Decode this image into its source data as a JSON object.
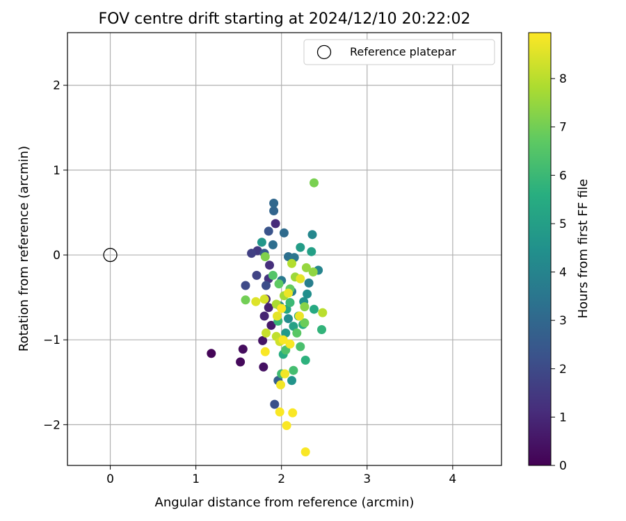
{
  "chart_data": {
    "type": "scatter",
    "title": "FOV centre drift starting at 2024/12/10 20:22:02",
    "xlabel": "Angular distance from reference (arcmin)",
    "ylabel": "Rotation from reference (arcmin)",
    "xlim": [
      -0.5,
      4.57
    ],
    "ylim": [
      -2.48,
      2.62
    ],
    "xticks": [
      0,
      1,
      2,
      3,
      4
    ],
    "xtick_labels": [
      "0",
      "1",
      "2",
      "3",
      "4"
    ],
    "yticks": [
      -2,
      -1,
      0,
      1,
      2
    ],
    "ytick_labels": [
      "−2",
      "−1",
      "0",
      "1",
      "2"
    ],
    "grid": true,
    "legend": {
      "placement": "top-right",
      "entries": [
        "Reference platepar"
      ]
    },
    "reference_point": {
      "name": "Reference platepar",
      "x": 0,
      "y": 0
    },
    "colorbar": {
      "label": "Hours from first FF file",
      "colormap": "viridis",
      "range": [
        0,
        8.95
      ],
      "ticks": [
        0,
        1,
        2,
        3,
        4,
        5,
        6,
        7,
        8
      ],
      "tick_labels": [
        "0",
        "1",
        "2",
        "3",
        "4",
        "5",
        "6",
        "7",
        "8"
      ]
    },
    "points": [
      {
        "x": 1.18,
        "y": -1.16,
        "h": 0.1
      },
      {
        "x": 1.52,
        "y": -1.26,
        "h": 0.2
      },
      {
        "x": 1.55,
        "y": -1.11,
        "h": 0.3
      },
      {
        "x": 1.79,
        "y": -1.32,
        "h": 0.4
      },
      {
        "x": 1.78,
        "y": -1.01,
        "h": 0.5
      },
      {
        "x": 1.88,
        "y": -0.83,
        "h": 0.6
      },
      {
        "x": 1.85,
        "y": -0.62,
        "h": 0.8
      },
      {
        "x": 1.8,
        "y": -0.72,
        "h": 0.9
      },
      {
        "x": 1.82,
        "y": -0.52,
        "h": 1.0
      },
      {
        "x": 1.93,
        "y": 0.37,
        "h": 1.1
      },
      {
        "x": 1.86,
        "y": -0.12,
        "h": 1.2
      },
      {
        "x": 1.85,
        "y": -0.28,
        "h": 1.3
      },
      {
        "x": 1.72,
        "y": 0.05,
        "h": 1.5
      },
      {
        "x": 1.65,
        "y": 0.02,
        "h": 1.7
      },
      {
        "x": 1.71,
        "y": -0.24,
        "h": 1.8
      },
      {
        "x": 1.58,
        "y": -0.36,
        "h": 2.0
      },
      {
        "x": 1.82,
        "y": -0.36,
        "h": 2.1
      },
      {
        "x": 1.92,
        "y": -1.76,
        "h": 2.2
      },
      {
        "x": 1.85,
        "y": 0.28,
        "h": 2.3
      },
      {
        "x": 1.8,
        "y": 0.02,
        "h": 2.5
      },
      {
        "x": 1.96,
        "y": -1.48,
        "h": 2.7
      },
      {
        "x": 1.91,
        "y": 0.52,
        "h": 2.9
      },
      {
        "x": 1.91,
        "y": 0.61,
        "h": 3.0
      },
      {
        "x": 2.03,
        "y": 0.26,
        "h": 3.1
      },
      {
        "x": 1.9,
        "y": 0.12,
        "h": 3.2
      },
      {
        "x": 2.08,
        "y": -0.02,
        "h": 3.3
      },
      {
        "x": 2.15,
        "y": -0.03,
        "h": 3.5
      },
      {
        "x": 2.0,
        "y": -0.3,
        "h": 3.6
      },
      {
        "x": 2.12,
        "y": -0.43,
        "h": 3.7
      },
      {
        "x": 2.32,
        "y": -0.33,
        "h": 3.8
      },
      {
        "x": 2.43,
        "y": -0.18,
        "h": 4.0
      },
      {
        "x": 2.36,
        "y": 0.24,
        "h": 4.1
      },
      {
        "x": 1.98,
        "y": -0.6,
        "h": 4.2
      },
      {
        "x": 2.08,
        "y": -0.75,
        "h": 4.3
      },
      {
        "x": 2.3,
        "y": -0.46,
        "h": 4.4
      },
      {
        "x": 2.26,
        "y": -0.55,
        "h": 4.5
      },
      {
        "x": 2.12,
        "y": -1.48,
        "h": 4.6
      },
      {
        "x": 1.77,
        "y": 0.15,
        "h": 4.7
      },
      {
        "x": 2.05,
        "y": -0.92,
        "h": 4.8
      },
      {
        "x": 2.22,
        "y": 0.09,
        "h": 4.9
      },
      {
        "x": 2.35,
        "y": 0.04,
        "h": 5.0
      },
      {
        "x": 2.14,
        "y": -0.84,
        "h": 5.1
      },
      {
        "x": 2.2,
        "y": -0.72,
        "h": 5.2
      },
      {
        "x": 2.06,
        "y": -0.64,
        "h": 5.3
      },
      {
        "x": 2.38,
        "y": -0.64,
        "h": 5.4
      },
      {
        "x": 2.02,
        "y": -1.17,
        "h": 5.5
      },
      {
        "x": 2.25,
        "y": -0.82,
        "h": 5.6
      },
      {
        "x": 2.28,
        "y": -1.24,
        "h": 5.7
      },
      {
        "x": 2.47,
        "y": -0.88,
        "h": 5.8
      },
      {
        "x": 1.96,
        "y": -0.78,
        "h": 5.9
      },
      {
        "x": 2.1,
        "y": -0.56,
        "h": 6.0
      },
      {
        "x": 2.0,
        "y": -1.4,
        "h": 6.1
      },
      {
        "x": 2.14,
        "y": -1.36,
        "h": 6.2
      },
      {
        "x": 2.22,
        "y": -1.08,
        "h": 6.3
      },
      {
        "x": 2.05,
        "y": -1.12,
        "h": 6.4
      },
      {
        "x": 1.9,
        "y": -0.24,
        "h": 6.5
      },
      {
        "x": 2.18,
        "y": -0.92,
        "h": 6.6
      },
      {
        "x": 1.97,
        "y": -0.34,
        "h": 6.7
      },
      {
        "x": 2.1,
        "y": -0.4,
        "h": 6.8
      },
      {
        "x": 2.27,
        "y": -0.8,
        "h": 6.9
      },
      {
        "x": 1.58,
        "y": -0.53,
        "h": 7.0
      },
      {
        "x": 2.38,
        "y": 0.85,
        "h": 7.1
      },
      {
        "x": 1.81,
        "y": -0.02,
        "h": 7.2
      },
      {
        "x": 2.27,
        "y": -0.61,
        "h": 7.3
      },
      {
        "x": 2.37,
        "y": -0.2,
        "h": 7.4
      },
      {
        "x": 2.29,
        "y": -0.15,
        "h": 7.5
      },
      {
        "x": 2.16,
        "y": -0.26,
        "h": 7.6
      },
      {
        "x": 2.03,
        "y": -0.48,
        "h": 7.7
      },
      {
        "x": 1.94,
        "y": -0.58,
        "h": 7.8
      },
      {
        "x": 2.12,
        "y": -0.1,
        "h": 7.9
      },
      {
        "x": 2.48,
        "y": -0.68,
        "h": 8.0
      },
      {
        "x": 1.94,
        "y": -0.96,
        "h": 8.1
      },
      {
        "x": 1.82,
        "y": -0.92,
        "h": 8.2
      },
      {
        "x": 1.98,
        "y": -1.02,
        "h": 8.3
      },
      {
        "x": 1.8,
        "y": -0.52,
        "h": 8.4
      },
      {
        "x": 1.7,
        "y": -0.55,
        "h": 8.5
      },
      {
        "x": 1.95,
        "y": -0.72,
        "h": 8.6
      },
      {
        "x": 2.22,
        "y": -0.28,
        "h": 8.6
      },
      {
        "x": 2.08,
        "y": -0.45,
        "h": 8.7
      },
      {
        "x": 2.21,
        "y": -0.72,
        "h": 8.7
      },
      {
        "x": 2.04,
        "y": -1.4,
        "h": 8.8
      },
      {
        "x": 1.99,
        "y": -1.53,
        "h": 8.8
      },
      {
        "x": 1.98,
        "y": -1.85,
        "h": 8.9
      },
      {
        "x": 2.13,
        "y": -1.86,
        "h": 8.9
      },
      {
        "x": 2.06,
        "y": -2.01,
        "h": 8.9
      },
      {
        "x": 2.28,
        "y": -2.32,
        "h": 8.9
      },
      {
        "x": 1.81,
        "y": -1.14,
        "h": 8.9
      },
      {
        "x": 2.1,
        "y": -1.05,
        "h": 8.9
      },
      {
        "x": 2.02,
        "y": -1.0,
        "h": 8.9
      },
      {
        "x": 2.0,
        "y": -0.63,
        "h": 8.9
      }
    ]
  }
}
